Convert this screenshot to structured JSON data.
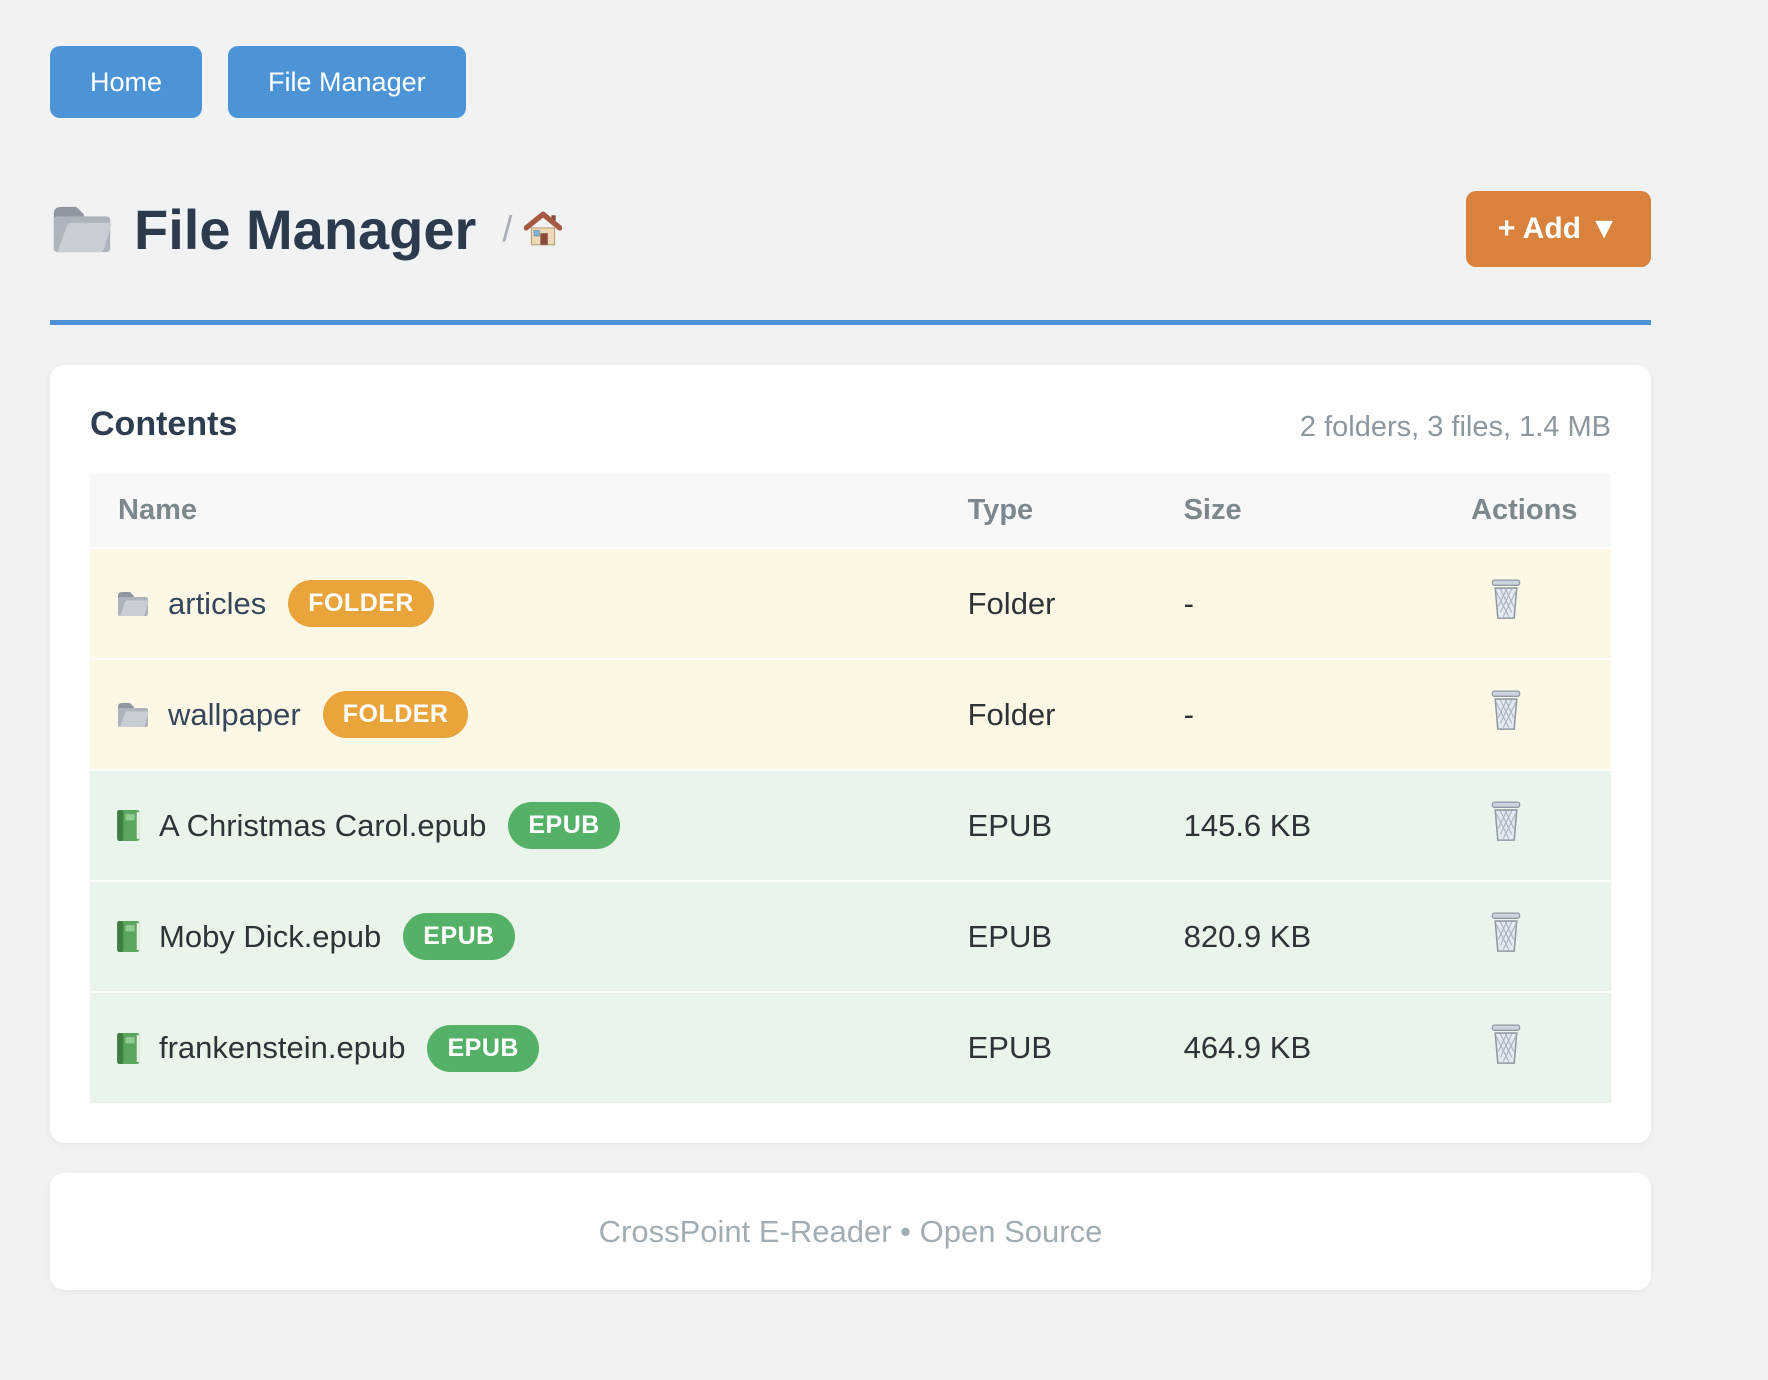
{
  "colors": {
    "primary": "#4d94d6",
    "orange": "#d9823e",
    "badgeOrange": "#e9a43b",
    "badgeGreen": "#55b167",
    "rowYellow": "#fdf8e6",
    "rowGreen": "#e9f4ea"
  },
  "nav": {
    "buttons": [
      {
        "label": "Home"
      },
      {
        "label": "File Manager"
      }
    ]
  },
  "header": {
    "title_icon": "folder-icon",
    "title": "File Manager",
    "breadcrumb_separator": "/",
    "breadcrumb_icon": "home-icon",
    "add_button_label": "+ Add ▼"
  },
  "contents": {
    "title": "Contents",
    "summary": "2 folders, 3 files, 1.4 MB"
  },
  "table": {
    "columns": [
      "Name",
      "Type",
      "Size",
      "Actions"
    ],
    "action_icon": "trash-icon",
    "rows": [
      {
        "icon": "folder-icon",
        "name": "articles",
        "badge": "FOLDER",
        "type": "Folder",
        "size": "-",
        "kind": "folder"
      },
      {
        "icon": "folder-icon",
        "name": "wallpaper",
        "badge": "FOLDER",
        "type": "Folder",
        "size": "-",
        "kind": "folder"
      },
      {
        "icon": "book-icon",
        "name": "A Christmas Carol.epub",
        "badge": "EPUB",
        "type": "EPUB",
        "size": "145.6 KB",
        "kind": "file"
      },
      {
        "icon": "book-icon",
        "name": "Moby Dick.epub",
        "badge": "EPUB",
        "type": "EPUB",
        "size": "820.9 KB",
        "kind": "file"
      },
      {
        "icon": "book-icon",
        "name": "frankenstein.epub",
        "badge": "EPUB",
        "type": "EPUB",
        "size": "464.9 KB",
        "kind": "file"
      }
    ]
  },
  "footer": {
    "text": "CrossPoint E-Reader • Open Source"
  }
}
